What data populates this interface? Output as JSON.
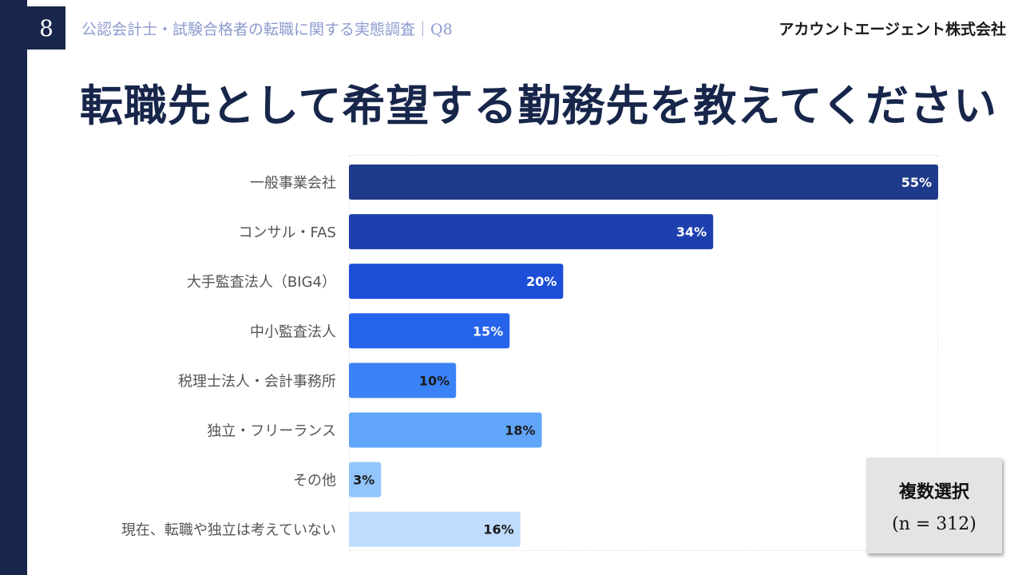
{
  "header": {
    "page_number": "8",
    "subtitle": "公認会計士・試験合格者の転職に関する実態調査｜Q8",
    "company": "アカウントエージェント株式会社"
  },
  "title": "転職先として希望する勤務先を教えてください",
  "note": {
    "line1": "複数選択",
    "line2": "(n = 312)"
  },
  "chart_data": {
    "type": "bar",
    "orientation": "horizontal",
    "unit": "%",
    "xlim": [
      0,
      55
    ],
    "grid": false,
    "categories": [
      "一般事業会社",
      "コンサル・FAS",
      "大手監査法人（BIG4）",
      "中小監査法人",
      "税理士法人・会計事務所",
      "独立・フリーランス",
      "その他",
      "現在、転職や独立は考えていない"
    ],
    "values": [
      55,
      34,
      20,
      15,
      10,
      18,
      3,
      16
    ],
    "labels": [
      "55%",
      "34%",
      "20%",
      "15%",
      "10%",
      "18%",
      "3%",
      "16%"
    ],
    "colors": [
      "#1e3a8a",
      "#1e40af",
      "#1d4ed8",
      "#2563eb",
      "#3b82f6",
      "#60a5fa",
      "#93c5fd",
      "#bfdbfe"
    ],
    "label_colors": [
      "#ffffff",
      "#ffffff",
      "#ffffff",
      "#ffffff",
      "#1a1a1a",
      "#1a1a1a",
      "#1a1a1a",
      "#1a1a1a"
    ]
  }
}
